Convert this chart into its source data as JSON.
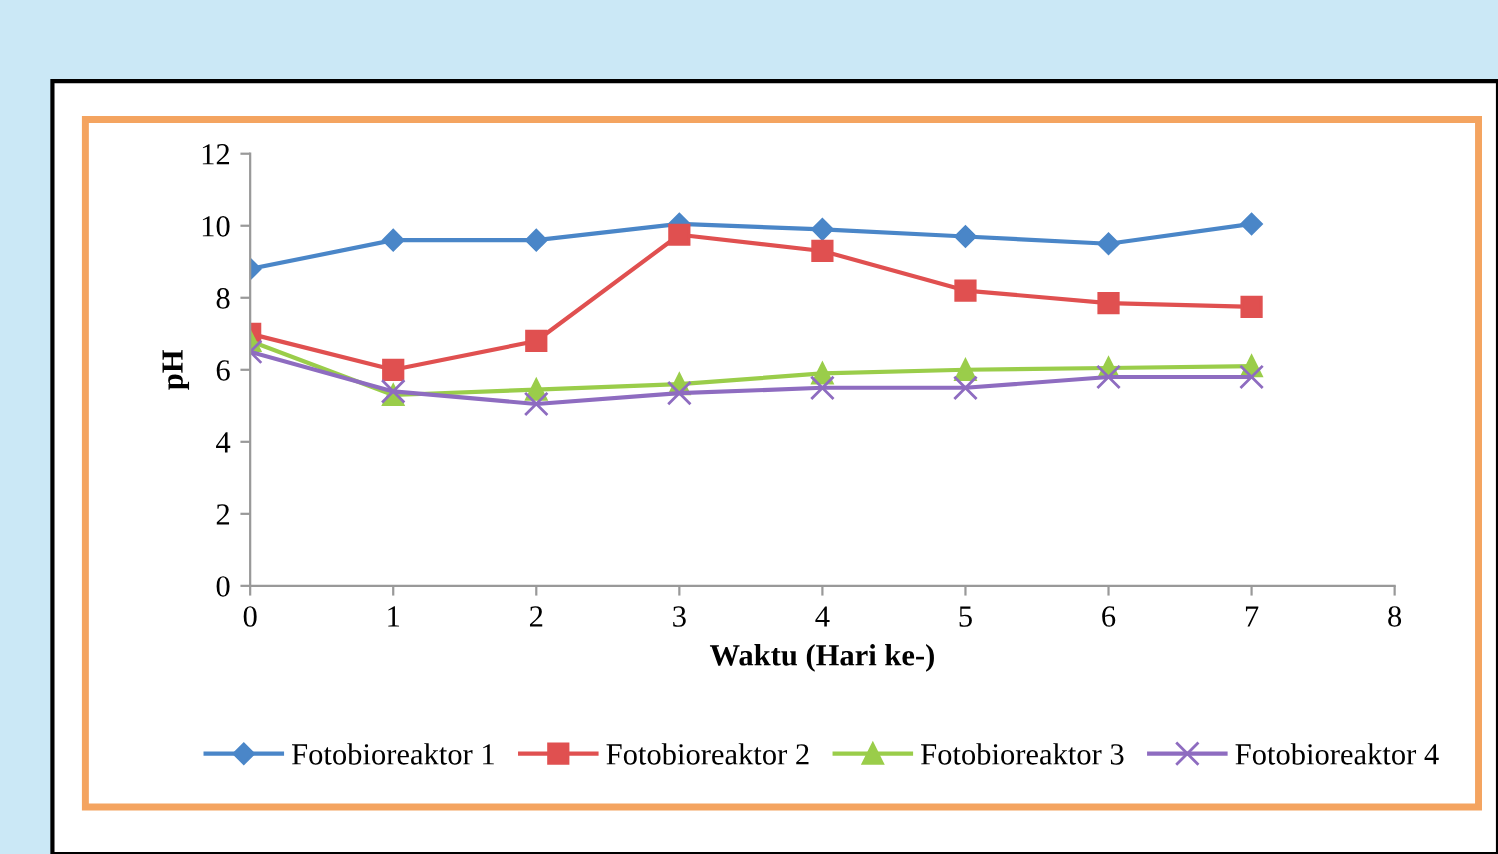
{
  "chart_data": {
    "type": "line",
    "xlabel": "Waktu (Hari ke-)",
    "ylabel": "pH",
    "x": [
      0,
      1,
      2,
      3,
      4,
      5,
      6,
      7
    ],
    "xlim": [
      0,
      8
    ],
    "xticks": [
      0,
      1,
      2,
      3,
      4,
      5,
      6,
      7,
      8
    ],
    "ylim": [
      0,
      12
    ],
    "yticks": [
      0,
      2,
      4,
      6,
      8,
      10,
      12
    ],
    "grid": false,
    "legend": "bottom",
    "line_style": "solid",
    "series": [
      {
        "name": "Fotobioreaktor 1",
        "color": "#4a86c8",
        "marker": "diamond",
        "values": [
          8.8,
          9.6,
          9.6,
          10.05,
          9.9,
          9.7,
          9.5,
          10.05
        ]
      },
      {
        "name": "Fotobioreaktor 2",
        "color": "#e05050",
        "marker": "square",
        "values": [
          7.0,
          6.0,
          6.8,
          9.75,
          9.3,
          8.2,
          7.85,
          7.75
        ]
      },
      {
        "name": "Fotobioreaktor 3",
        "color": "#9acd4a",
        "marker": "triangle",
        "values": [
          6.8,
          5.3,
          5.45,
          5.6,
          5.9,
          6.0,
          6.05,
          6.1
        ]
      },
      {
        "name": "Fotobioreaktor 4",
        "color": "#8e6cc0",
        "marker": "cross",
        "values": [
          6.5,
          5.4,
          5.05,
          5.35,
          5.5,
          5.5,
          5.8,
          5.8
        ]
      }
    ]
  }
}
